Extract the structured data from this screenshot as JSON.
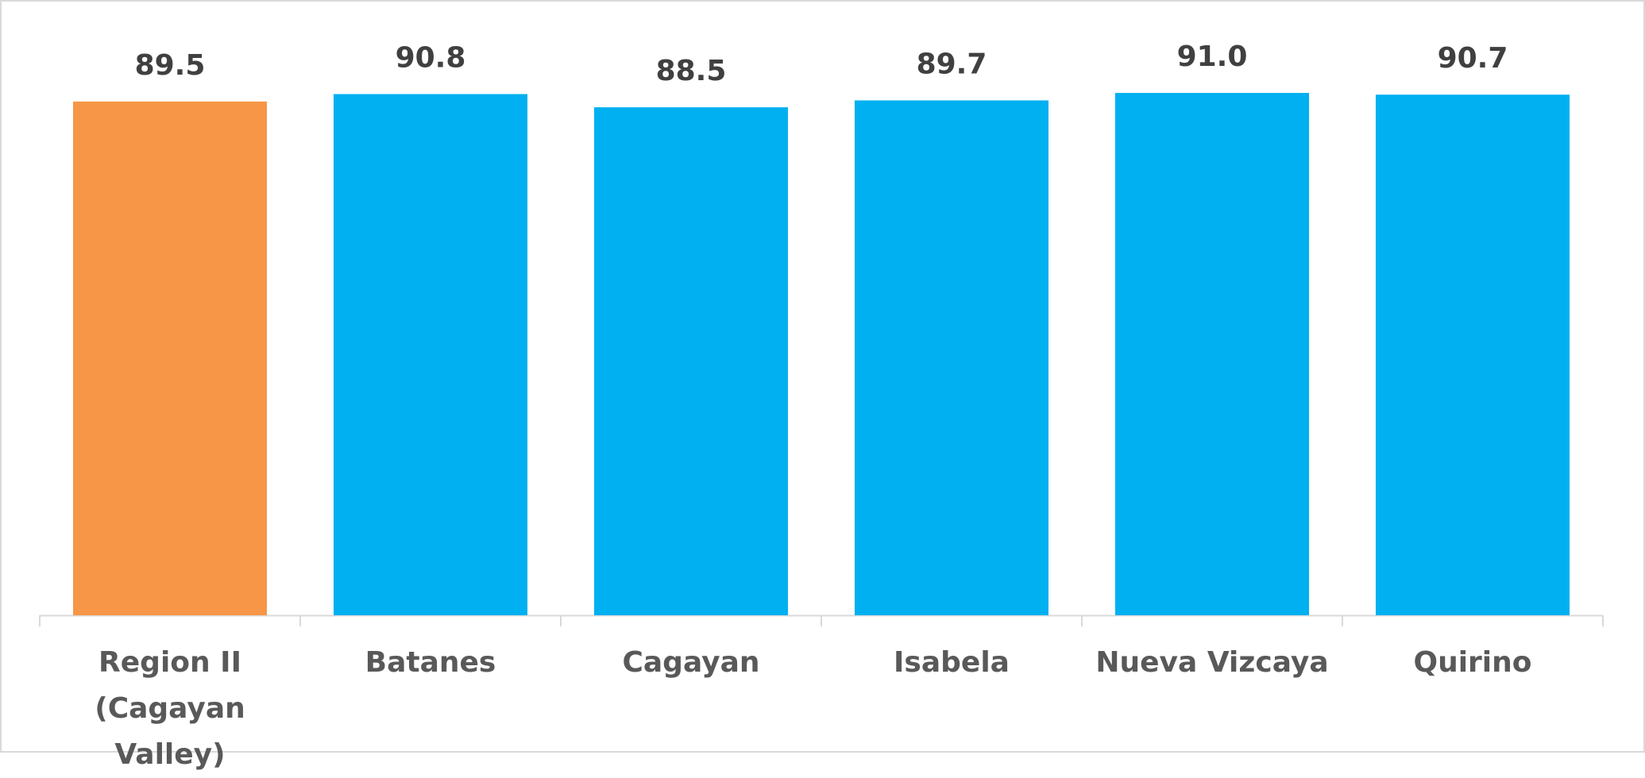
{
  "chart_data": {
    "type": "bar",
    "categories": [
      "Region II\n(Cagayan Valley)",
      "Batanes",
      "Cagayan",
      "Isabela",
      "Nueva Vizcaya",
      "Quirino"
    ],
    "values": [
      89.5,
      90.8,
      88.5,
      89.7,
      91.0,
      90.7
    ],
    "value_labels": [
      "89.5",
      "90.8",
      "88.5",
      "89.7",
      "91.0",
      "90.7"
    ],
    "colors": [
      "#F79646",
      "#00B0F0",
      "#00B0F0",
      "#00B0F0",
      "#00B0F0",
      "#00B0F0"
    ],
    "ylim": [
      0,
      100
    ],
    "grid": false
  }
}
